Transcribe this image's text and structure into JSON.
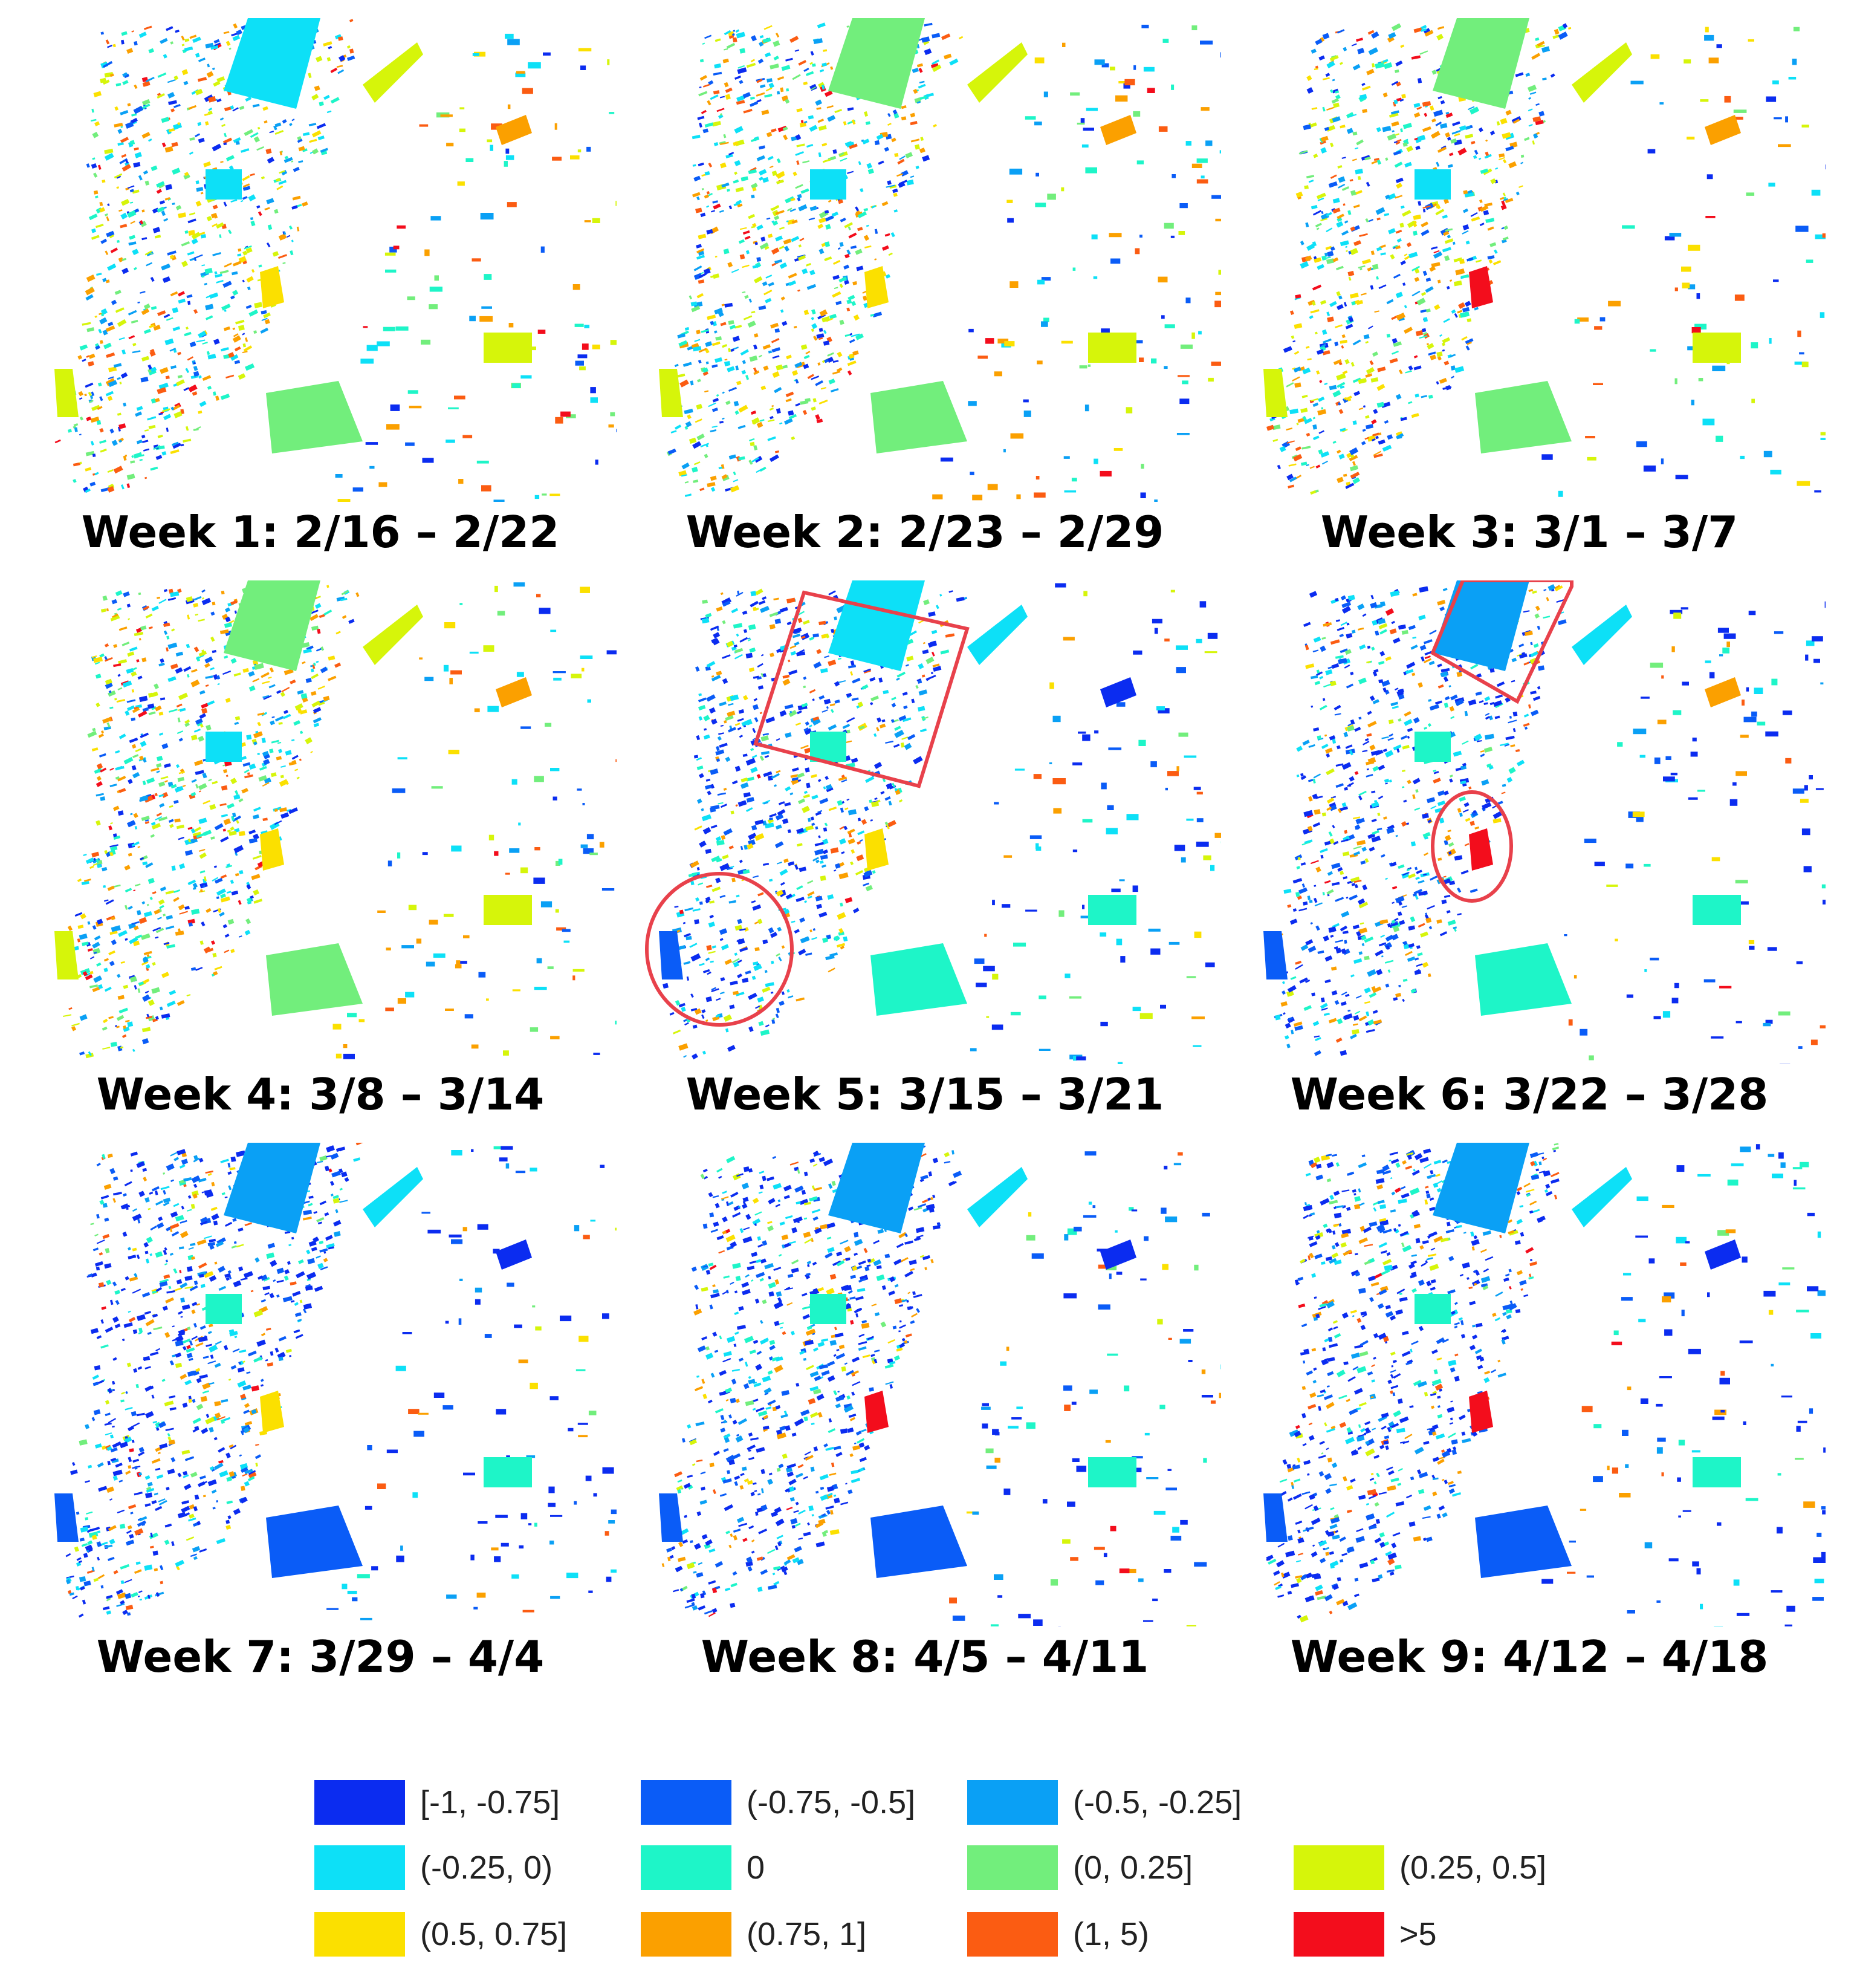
{
  "figure": {
    "panels": [
      {
        "caption": "Week 1: 2/16 – 2/22",
        "mix": "early",
        "highlights": []
      },
      {
        "caption": "Week 2: 2/23 – 2/29",
        "mix": "early",
        "highlights": []
      },
      {
        "caption": "Week 3: 3/1 – 3/7",
        "mix": "early",
        "highlights": []
      },
      {
        "caption": "Week 4: 3/8 – 3/14",
        "mix": "early",
        "highlights": []
      },
      {
        "caption": "Week 5: 3/15 – 3/21",
        "mix": "transition",
        "highlights": [
          "rectangle-midtown",
          "circle-downtown"
        ]
      },
      {
        "caption": "Week 6: 3/22 – 3/28",
        "mix": "late",
        "highlights": [
          "rectangle-north",
          "ellipse-east"
        ]
      },
      {
        "caption": "Week 7: 3/29 – 4/4",
        "mix": "late",
        "highlights": []
      },
      {
        "caption": "Week 8: 4/5 – 4/11",
        "mix": "late",
        "highlights": []
      },
      {
        "caption": "Week 9: 4/12 – 4/18",
        "mix": "late",
        "highlights": []
      }
    ],
    "highlight_color": "#e8414b"
  },
  "legend": {
    "items": [
      {
        "label": "[-1, -0.75]",
        "color": "#0b2cf0"
      },
      {
        "label": "(-0.75, -0.5]",
        "color": "#0a5cf7"
      },
      {
        "label": "(-0.5, -0.25]",
        "color": "#0aa0f5"
      },
      {
        "label": "(-0.25, 0)",
        "color": "#0de0f7"
      },
      {
        "label": "0",
        "color": "#1ef5c8"
      },
      {
        "label": "(0, 0.25]",
        "color": "#72ee7c"
      },
      {
        "label": "(0.25, 0.5]",
        "color": "#d6f50a"
      },
      {
        "label": "(0.5, 0.75]",
        "color": "#fbe000"
      },
      {
        "label": "(0.75, 1]",
        "color": "#fba000"
      },
      {
        "label": "(1, 5)",
        "color": "#fb5c12"
      },
      {
        "label": ">5",
        "color": "#f30d1c"
      }
    ]
  }
}
